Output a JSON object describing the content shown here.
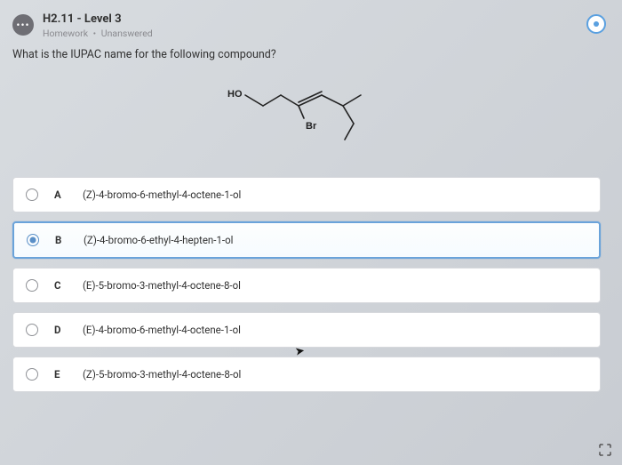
{
  "header": {
    "title": "H2.11 - Level 3",
    "category": "Homework",
    "status": "Unanswered"
  },
  "question": "What is the IUPAC name for the following compound?",
  "diagram": {
    "labels": {
      "ho": "HO",
      "br": "Br"
    },
    "stroke": "#222222",
    "label_font": "bold 11px Arial"
  },
  "options": [
    {
      "letter": "A",
      "text": "(Z)-4-bromo-6-methyl-4-octene-1-ol",
      "selected": false
    },
    {
      "letter": "B",
      "text": "(Z)-4-bromo-6-ethyl-4-hepten-1-ol",
      "selected": true
    },
    {
      "letter": "C",
      "text": "(E)-5-bromo-3-methyl-4-octene-8-ol",
      "selected": false
    },
    {
      "letter": "D",
      "text": "(E)-4-bromo-6-methyl-4-octene-1-ol",
      "selected": false
    },
    {
      "letter": "E",
      "text": "(Z)-5-bromo-3-methyl-4-octene-8-ol",
      "selected": false
    }
  ],
  "colors": {
    "selected_border": "#6aa3da",
    "option_bg": "#ffffff"
  }
}
